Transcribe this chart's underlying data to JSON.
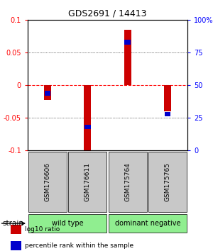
{
  "title": "GDS2691 / 14413",
  "samples": [
    "GSM176606",
    "GSM176611",
    "GSM175764",
    "GSM175765"
  ],
  "log10_ratio": [
    -0.022,
    -0.102,
    0.085,
    -0.04
  ],
  "percentile_rank": [
    0.44,
    0.18,
    0.83,
    0.28
  ],
  "bar_width": 0.18,
  "ylim": [
    -0.1,
    0.1
  ],
  "yticks_left": [
    -0.1,
    -0.05,
    0,
    0.05,
    0.1
  ],
  "yticks_right": [
    0,
    25,
    50,
    75,
    100
  ],
  "strain_label": "strain",
  "bar_color": "#cc0000",
  "marker_color": "#0000cc",
  "bg_color": "#ffffff",
  "sample_box_color": "#c8c8c8",
  "group_box_color": "#90ee90",
  "legend_items": [
    {
      "color": "#cc0000",
      "label": "log10 ratio"
    },
    {
      "color": "#0000cc",
      "label": "percentile rank within the sample"
    }
  ]
}
